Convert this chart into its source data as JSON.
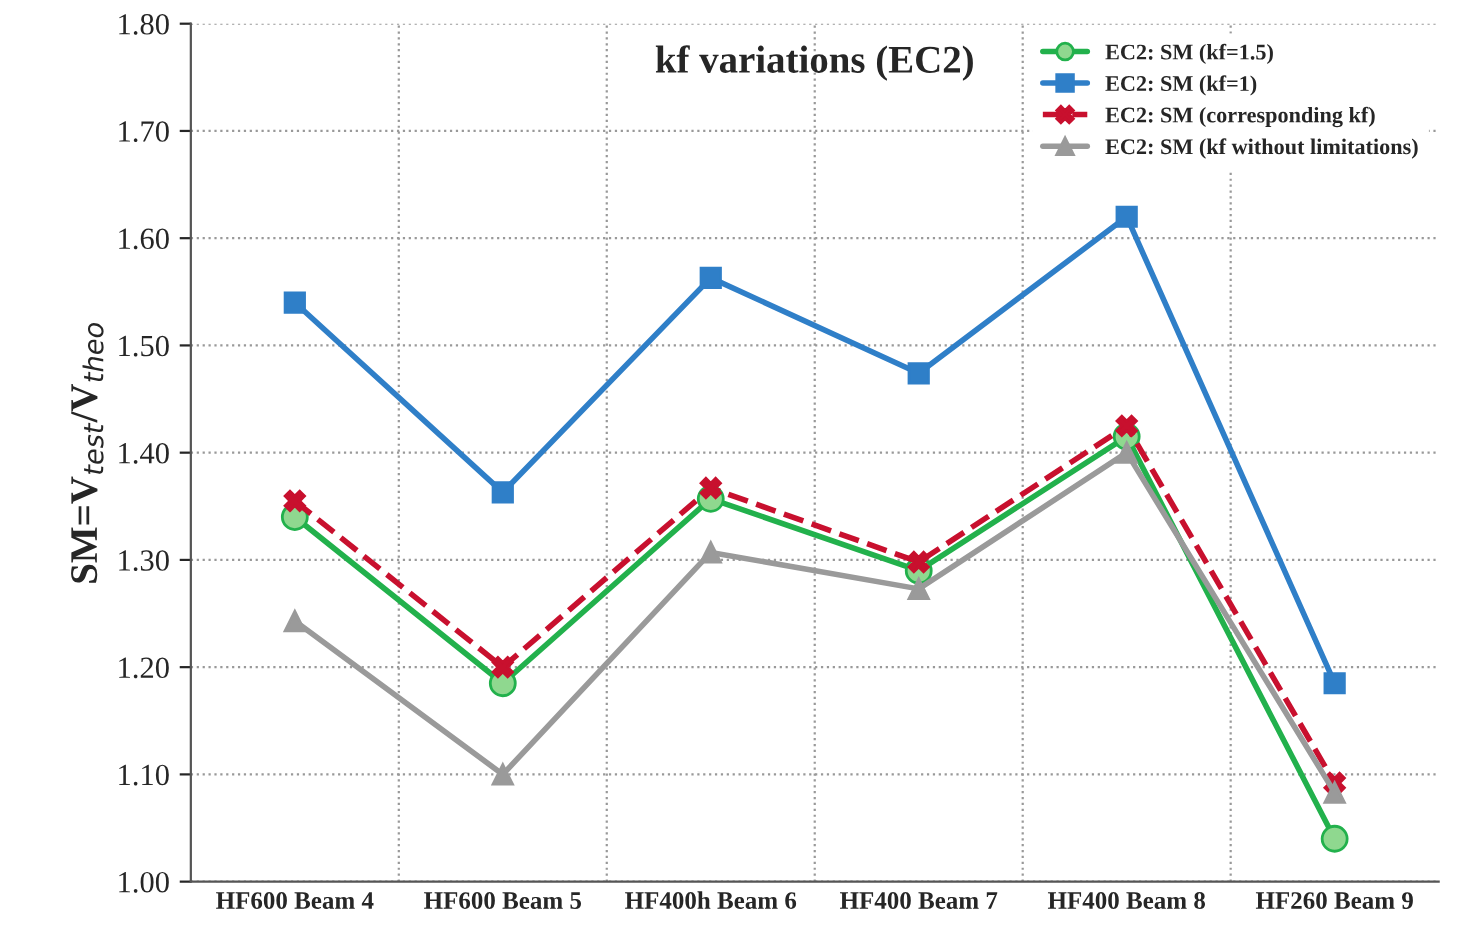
{
  "chart_data": {
    "type": "line",
    "title": "kf variations (EC2)",
    "ylabel": "SM=V$_{test}$/V$_{theo}$",
    "categories": [
      "HF600 Beam 4",
      "HF600 Beam 5",
      "HF400h Beam 6",
      "HF400 Beam 7",
      "HF400 Beam 8",
      "HF260 Beam 9"
    ],
    "series": [
      {
        "name": "EC2: SM (kf=1.5)",
        "color": "#22b14c",
        "marker": "circle",
        "line_style": "solid",
        "values": [
          1.34,
          1.185,
          1.357,
          1.29,
          1.415,
          1.04
        ]
      },
      {
        "name": "EC2: SM (kf=1)",
        "color": "#2f7fc8",
        "marker": "square",
        "line_style": "solid",
        "values": [
          1.54,
          1.363,
          1.563,
          1.474,
          1.62,
          1.185
        ]
      },
      {
        "name": "EC2: SM (corresponding kf)",
        "color": "#c8102e",
        "marker": "cross",
        "line_style": "dashed",
        "values": [
          1.355,
          1.2,
          1.367,
          1.298,
          1.425,
          1.092
        ]
      },
      {
        "name": "EC2: SM (kf without limitations)",
        "color": "#9a9a9a",
        "marker": "triangle",
        "line_style": "solid",
        "values": [
          1.243,
          1.1,
          1.307,
          1.273,
          1.4,
          1.083
        ]
      }
    ],
    "ylim": [
      1.0,
      1.8
    ],
    "yticks": [
      {
        "value": 1.0,
        "label": "1.00"
      },
      {
        "value": 1.1,
        "label": "1.10"
      },
      {
        "value": 1.2,
        "label": "1.20"
      },
      {
        "value": 1.3,
        "label": "1.30"
      },
      {
        "value": 1.4,
        "label": "1.40"
      },
      {
        "value": 1.5,
        "label": "1.50"
      },
      {
        "value": 1.6,
        "label": "1.60"
      },
      {
        "value": 1.7,
        "label": "1.70"
      },
      {
        "value": 1.8,
        "label": "1.80"
      }
    ],
    "grid": true,
    "legend": "top right"
  }
}
